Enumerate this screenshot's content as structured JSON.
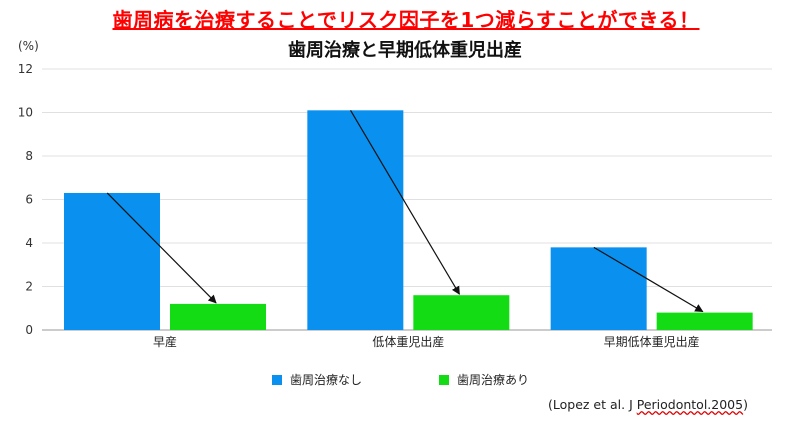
{
  "headline": "歯周病を治療することでリスク因子を1つ減らすことができる！",
  "unit_label": "(%)",
  "citation": {
    "prefix": "(Lopez et al. J ",
    "journal": "Periodontol.2005",
    "suffix": ")"
  },
  "colors": {
    "no_treatment": "#0a91f0",
    "treatment": "#14dc14",
    "headline": "#ff0000",
    "grid": "#e0e0e0"
  },
  "chart_data": {
    "type": "bar",
    "title": "歯周治療と早期低体重児出産",
    "xlabel": "",
    "ylabel": "(%)",
    "categories": [
      "早産",
      "低体重児出産",
      "早期低体重児出産"
    ],
    "series": [
      {
        "name": "歯周治療なし",
        "values": [
          6.3,
          10.1,
          3.8
        ]
      },
      {
        "name": "歯周治療あり",
        "values": [
          1.2,
          1.6,
          0.8
        ]
      }
    ],
    "ylim": [
      0,
      12
    ],
    "yticks": [
      0,
      2,
      4,
      6,
      8,
      10,
      12
    ],
    "grid": true,
    "legend": "bottom",
    "annotations": "arrows from each 歯周治療なし bar top to the 歯周治療あり bar top"
  }
}
